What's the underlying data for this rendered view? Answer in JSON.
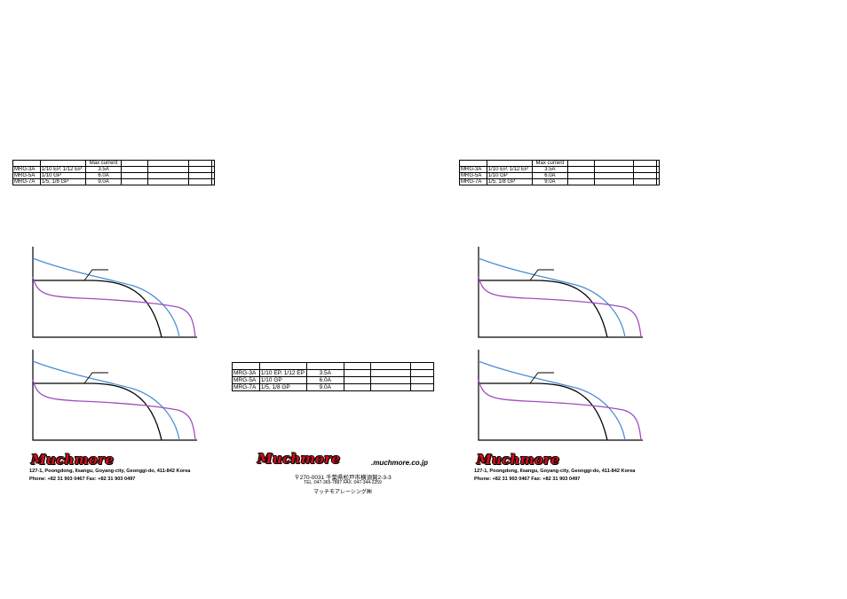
{
  "spec_table": {
    "header": [
      "",
      "",
      "Max current",
      "",
      "",
      "",
      ""
    ],
    "rows": [
      {
        "model": "MRG-3A",
        "scale": "1/10 EP, 1/12 EP",
        "current": "3.5A"
      },
      {
        "model": "MRG-5A",
        "scale": "1/10 GP",
        "current": "6.0A"
      },
      {
        "model": "MRG-7A",
        "scale": "1/5, 1/8 GP",
        "current": "9.0A"
      }
    ]
  },
  "brand": {
    "logo_text": "Muchmore",
    "korea_address": "127-1, Poongdong, Ilsangu, Goyang-city, Geonggi-do, 411-842 Korea",
    "korea_phone": "Phone: +82 31 903 0467 Fax: +82 31 903 0497",
    "website": ".muchmore.co.jp",
    "jp_postal": "〒270-0031  千葉県松戸市横須賀2-3-3",
    "jp_tel": "TEL :047-365-7887  FAX :047-344-2259",
    "jp_company": "マッチモアレーシング㈱"
  },
  "colors": {
    "blue_curve": "#4a8fd4",
    "purple_curve": "#a24cc0",
    "black_curve": "#000000",
    "logo_red": "#d0101a"
  }
}
